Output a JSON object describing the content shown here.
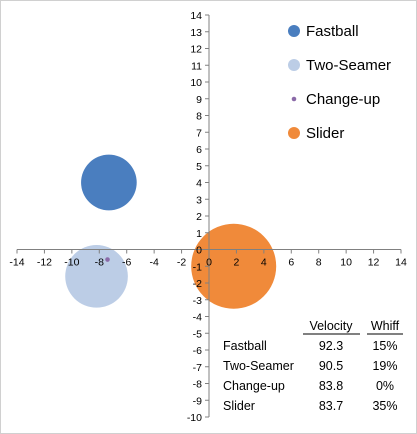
{
  "chart_data": {
    "type": "bubble",
    "xlim": [
      -14,
      14
    ],
    "ylim": [
      -10,
      14
    ],
    "x_ticks": [
      -14,
      -12,
      -10,
      -8,
      -6,
      -4,
      -2,
      0,
      2,
      4,
      6,
      8,
      10,
      12,
      14
    ],
    "y_ticks": [
      -10,
      -9,
      -8,
      -7,
      -6,
      -5,
      -4,
      -3,
      -2,
      -1,
      0,
      1,
      2,
      3,
      4,
      5,
      6,
      7,
      8,
      9,
      10,
      11,
      12,
      13,
      14
    ],
    "grid": false,
    "legend_position": "top-right",
    "series": [
      {
        "name": "Fastball",
        "x": -7.3,
        "y": 4.0,
        "size": 15,
        "color": "#4a7ebf"
      },
      {
        "name": "Two-Seamer",
        "x": -8.2,
        "y": -1.6,
        "size": 19,
        "color": "#bccde6"
      },
      {
        "name": "Change-up",
        "x": -7.4,
        "y": -0.6,
        "size": 0,
        "color": "#8b6aa8"
      },
      {
        "name": "Slider",
        "x": 1.8,
        "y": -1.0,
        "size": 35,
        "color": "#f08a3a"
      }
    ],
    "table": {
      "columns": [
        "Velocity",
        "Whiff"
      ],
      "rows": [
        {
          "pitch": "Fastball",
          "velocity": "92.3",
          "whiff": "15%"
        },
        {
          "pitch": "Two-Seamer",
          "velocity": "90.5",
          "whiff": "19%"
        },
        {
          "pitch": "Change-up",
          "velocity": "83.8",
          "whiff": "0%"
        },
        {
          "pitch": "Slider",
          "velocity": "83.7",
          "whiff": "35%"
        }
      ]
    }
  }
}
